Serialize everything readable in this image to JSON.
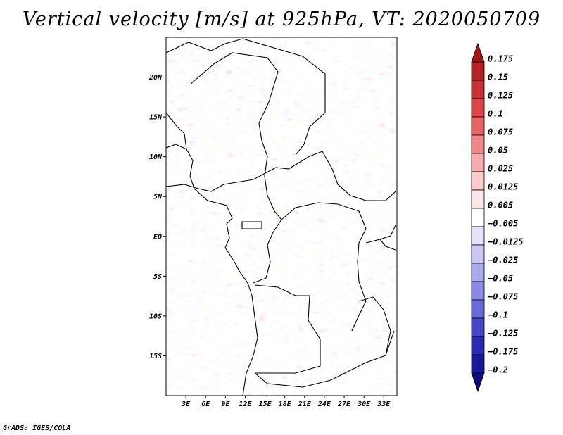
{
  "title": "Vertical velocity [m/s] at 925hPa, VT: 2020050709",
  "credit": "GrADS: IGES/COLA",
  "map": {
    "lon_range": [
      0,
      35
    ],
    "lat_range": [
      -20,
      25
    ],
    "lat_ticks": [
      {
        "value": 20,
        "label": "20N"
      },
      {
        "value": 15,
        "label": "15N"
      },
      {
        "value": 10,
        "label": "10N"
      },
      {
        "value": 5,
        "label": "5N"
      },
      {
        "value": 0,
        "label": "EQ"
      },
      {
        "value": -5,
        "label": "5S"
      },
      {
        "value": -10,
        "label": "10S"
      },
      {
        "value": -15,
        "label": "15S"
      }
    ],
    "lon_ticks": [
      {
        "value": 3,
        "label": "3E"
      },
      {
        "value": 6,
        "label": "6E"
      },
      {
        "value": 9,
        "label": "9E"
      },
      {
        "value": 12,
        "label": "12E"
      },
      {
        "value": 15,
        "label": "15E"
      },
      {
        "value": 18,
        "label": "18E"
      },
      {
        "value": 21,
        "label": "21E"
      },
      {
        "value": 24,
        "label": "24E"
      },
      {
        "value": 27,
        "label": "27E"
      },
      {
        "value": 30,
        "label": "30E"
      },
      {
        "value": 33,
        "label": "33E"
      }
    ]
  },
  "colorbar": {
    "labels": [
      "0.175",
      "0.15",
      "0.125",
      "0.1",
      "0.075",
      "0.05",
      "0.025",
      "0.0125",
      "0.005",
      "−0.005",
      "−0.0125",
      "−0.025",
      "−0.05",
      "−0.075",
      "−0.1",
      "−0.125",
      "−0.175",
      "−0.2"
    ],
    "colors": [
      "#a01818",
      "#b42222",
      "#c83232",
      "#dc4646",
      "#e86464",
      "#f08888",
      "#f6aaaa",
      "#fbcaca",
      "#fde6e6",
      "#ffffff",
      "#e2e2fb",
      "#c8c8f6",
      "#aaaaf0",
      "#8a8ae6",
      "#6a6ad8",
      "#4646c8",
      "#2a2ab4",
      "#18189a",
      "#0c0c7c"
    ]
  }
}
